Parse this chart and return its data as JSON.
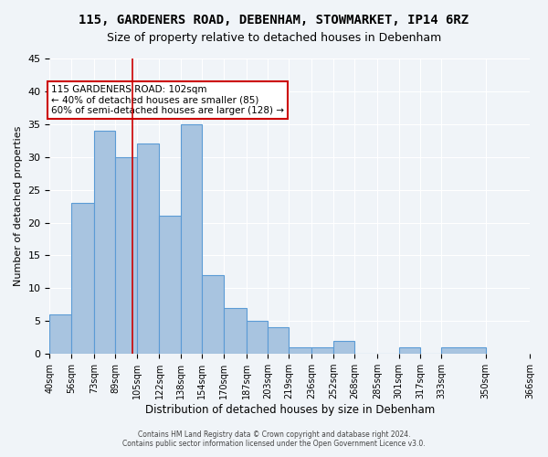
{
  "title1": "115, GARDENERS ROAD, DEBENHAM, STOWMARKET, IP14 6RZ",
  "title2": "Size of property relative to detached houses in Debenham",
  "xlabel": "Distribution of detached houses by size in Debenham",
  "ylabel": "Number of detached properties",
  "bar_values": [
    6,
    23,
    34,
    30,
    32,
    21,
    35,
    12,
    7,
    5,
    4,
    1,
    1,
    2,
    0,
    0,
    1,
    0,
    1
  ],
  "bin_edges": [
    40,
    56,
    73,
    89,
    105,
    122,
    138,
    154,
    170,
    187,
    203,
    219,
    236,
    252,
    268,
    285,
    301,
    317,
    333,
    366
  ],
  "x_labels": [
    "40sqm",
    "56sqm",
    "73sqm",
    "89sqm",
    "105sqm",
    "122sqm",
    "138sqm",
    "154sqm",
    "170sqm",
    "187sqm",
    "203sqm",
    "219sqm",
    "236sqm",
    "252sqm",
    "268sqm",
    "285sqm",
    "301sqm",
    "317sqm",
    "333sqm",
    "350sqm",
    "366sqm"
  ],
  "bar_color": "#a8c4e0",
  "bar_edge_color": "#5b9bd5",
  "red_line_x": 102,
  "ylim": [
    0,
    45
  ],
  "yticks": [
    0,
    5,
    10,
    15,
    20,
    25,
    30,
    35,
    40,
    45
  ],
  "annotation_title": "115 GARDENERS ROAD: 102sqm",
  "annotation_line1": "← 40% of detached houses are smaller (85)",
  "annotation_line2": "60% of semi-detached houses are larger (128) →",
  "annotation_box_color": "#ffffff",
  "annotation_box_edge": "#cc0000",
  "footer1": "Contains HM Land Registry data © Crown copyright and database right 2024.",
  "footer2": "Contains public sector information licensed under the Open Government Licence v3.0.",
  "background_color": "#f0f4f8",
  "grid_color": "#ffffff"
}
